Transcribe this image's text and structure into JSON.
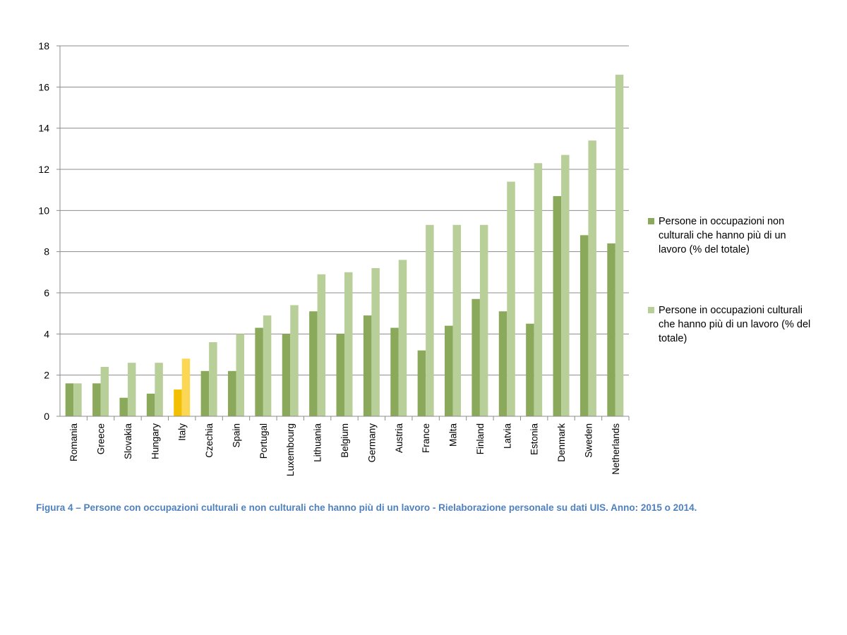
{
  "chart_data": {
    "type": "bar",
    "categories": [
      "Romania",
      "Greece",
      "Slovakia",
      "Hungary",
      "Italy",
      "Czechia",
      "Spain",
      "Portugal",
      "Luxembourg",
      "Lithuania",
      "Belgium",
      "Germany",
      "Austria",
      "France",
      "Malta",
      "Finland",
      "Latvia",
      "Estonia",
      "Denmark",
      "Sweden",
      "Netherlands"
    ],
    "series": [
      {
        "name": "Persone in occupazioni non culturali che hanno più di un lavoro (% del totale)",
        "color": "#8aa95a",
        "values": [
          1.6,
          1.6,
          0.9,
          1.1,
          1.3,
          2.2,
          2.2,
          4.3,
          4.0,
          5.1,
          4.0,
          4.9,
          4.3,
          3.2,
          4.4,
          5.7,
          5.1,
          4.5,
          10.7,
          8.8,
          8.4
        ]
      },
      {
        "name": "Persone in occupazioni culturali che hanno più di un lavoro (% del totale)",
        "color": "#b9cf9a",
        "values": [
          1.6,
          2.4,
          2.6,
          2.6,
          2.8,
          3.6,
          4.0,
          4.9,
          5.4,
          6.9,
          7.0,
          7.2,
          7.6,
          9.3,
          9.3,
          9.3,
          11.4,
          12.3,
          12.7,
          13.4,
          16.6
        ]
      }
    ],
    "highlight": {
      "category": "Italy",
      "colors": [
        "#f2c000",
        "#fbd755"
      ]
    },
    "yticks": [
      "0",
      "2",
      "4",
      "6",
      "8",
      "10",
      "12",
      "14",
      "16",
      "18"
    ],
    "ylim": [
      0,
      18
    ],
    "grid": true,
    "legend_position": "right",
    "legend_labels": [
      [
        "Persone in occupazioni non",
        "culturali che hanno più di un",
        "lavoro (% del totale)"
      ],
      [
        "Persone in occupazioni culturali",
        "che hanno più di un lavoro (% del",
        "totale)"
      ]
    ],
    "xlabel": "",
    "ylabel": ""
  },
  "caption": "Figura 4 – Persone con occupazioni culturali e non culturali che hanno più di un lavoro - Rielaborazione personale su dati UIS. Anno: 2015 o 2014."
}
